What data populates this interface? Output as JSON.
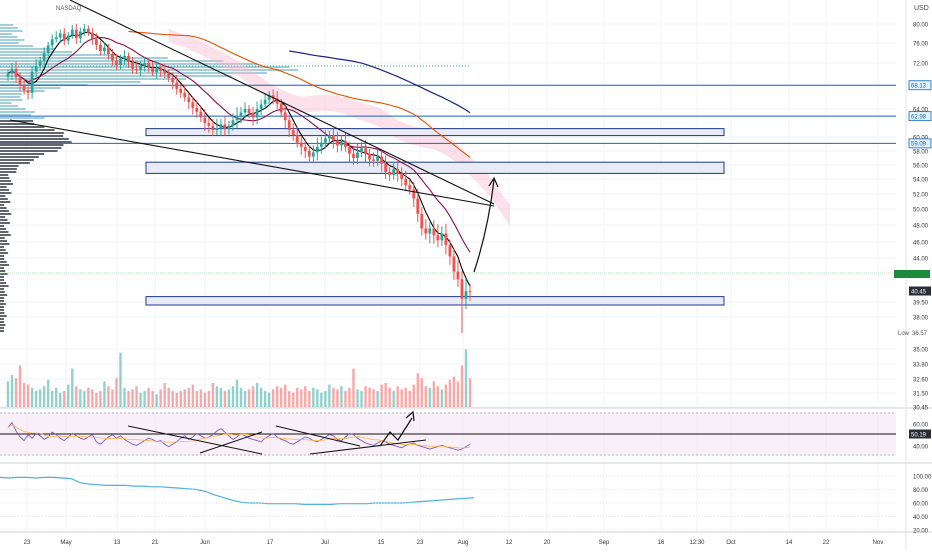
{
  "header": {
    "symbol": "NASDAQ",
    "currency": "USD"
  },
  "price_badges": {
    "resistance_high": "68.13",
    "resistance_mid": "62.98",
    "resistance_low": "59.09",
    "last": "40.45",
    "low_label": "Low",
    "low_value": "36.57"
  },
  "rsi_badge": "50.19",
  "colors": {
    "up": "#26a69a",
    "down": "#ef5350",
    "zone": "#1e3a8a",
    "zone_fill": "#e8eaf6",
    "ma_fast": "#000000",
    "ma_mid": "#880e4f",
    "ma_slow": "#e65100",
    "ma_long": "#1a237e",
    "cloud": "#f8bbd0",
    "rsi": "#7e57c2",
    "breadth": "#4fb0e0",
    "badge": "#1565c0"
  },
  "chart_data": [
    {
      "type": "candlestick",
      "title": "",
      "y_ticks": [
        "80.00",
        "76.00",
        "72.00",
        "68.00",
        "64.00",
        "60.00",
        "58.00",
        "56.00",
        "54.00",
        "52.00",
        "50.00",
        "48.00",
        "46.00",
        "44.00",
        "42.00",
        "39.50",
        "38.00",
        "35.00",
        "33.80",
        "32.60",
        "31.50",
        "30.45"
      ],
      "x_ticks": [
        "23",
        "May",
        "13",
        "21",
        "Jun",
        "17",
        "Jul",
        "15",
        "23",
        "Aug",
        "12",
        "20",
        "Sep",
        "16",
        "12:30",
        "Oct",
        "14",
        "22",
        "Nov"
      ],
      "zones": [
        [
          60.2,
          61.2
        ],
        [
          54.8,
          56.4
        ],
        [
          39.2,
          40.0
        ]
      ],
      "horizontal_levels": [
        68.13,
        62.98,
        59.09
      ],
      "close": [
        70.2,
        71.0,
        69.5,
        68.0,
        67.2,
        66.8,
        70.5,
        71.5,
        72.4,
        74.0,
        75.5,
        76.8,
        77.2,
        78.0,
        76.5,
        77.6,
        78.8,
        77.0,
        78.4,
        79.0,
        78.2,
        76.8,
        75.6,
        74.4,
        75.1,
        73.8,
        72.5,
        71.6,
        72.8,
        73.4,
        72.2,
        71.0,
        70.8,
        71.5,
        72.0,
        71.2,
        70.4,
        71.0,
        70.6,
        70.2,
        69.4,
        68.6,
        67.5,
        66.8,
        66.0,
        65.2,
        64.2,
        63.6,
        62.8,
        62.0,
        61.6,
        61.0,
        61.3,
        61.8,
        61.2,
        61.6,
        62.4,
        63.0,
        63.5,
        64.0,
        63.4,
        62.8,
        64.0,
        64.8,
        65.6,
        66.4,
        65.8,
        64.9,
        63.5,
        62.4,
        61.0,
        60.3,
        59.2,
        58.6,
        58.0,
        57.2,
        57.8,
        58.6,
        59.2,
        59.8,
        60.2,
        59.5,
        58.8,
        59.4,
        58.6,
        57.6,
        57.0,
        57.8,
        58.4,
        57.6,
        56.8,
        56.6,
        57.2,
        56.2,
        55.0,
        54.6,
        55.4,
        54.8,
        54.0,
        53.2,
        52.6,
        51.4,
        49.4,
        47.6,
        47.0,
        47.6,
        46.8,
        46.2,
        47.0,
        45.6,
        44.2,
        42.4,
        41.6,
        39.8,
        40.5,
        40.45
      ],
      "volume": [
        1.6,
        2.0,
        1.8,
        2.6,
        1.5,
        1.4,
        1.2,
        1.0,
        1.1,
        1.3,
        1.7,
        1.0,
        1.2,
        0.9,
        1.0,
        1.4,
        2.4,
        1.3,
        1.1,
        1.0,
        1.2,
        1.1,
        0.9,
        1.0,
        1.6,
        1.3,
        1.1,
        1.8,
        3.4,
        1.2,
        1.0,
        1.1,
        1.3,
        0.9,
        1.0,
        1.2,
        1.0,
        0.8,
        1.1,
        1.5,
        1.2,
        1.0,
        0.9,
        1.0,
        1.1,
        1.2,
        1.4,
        1.0,
        1.1,
        0.9,
        1.0,
        1.5,
        1.3,
        1.2,
        1.0,
        1.1,
        1.3,
        1.7,
        1.2,
        1.0,
        1.1,
        1.3,
        1.5,
        1.2,
        1.0,
        0.9,
        1.1,
        1.3,
        1.2,
        1.4,
        1.0,
        0.9,
        1.2,
        1.1,
        1.3,
        1.0,
        1.2,
        1.1,
        0.9,
        1.0,
        1.4,
        1.2,
        1.1,
        1.3,
        1.0,
        1.2,
        2.4,
        1.1,
        1.0,
        1.3,
        1.2,
        1.1,
        1.0,
        1.4,
        1.5,
        1.2,
        1.0,
        1.3,
        1.1,
        1.2,
        1.0,
        1.4,
        2.1,
        1.8,
        1.3,
        1.2,
        1.6,
        1.3,
        1.1,
        1.4,
        1.7,
        1.9,
        1.6,
        2.6,
        3.6,
        1.8
      ]
    },
    {
      "type": "line",
      "name": "",
      "y_ticks": [
        "60.00",
        "50.19",
        "40.00"
      ],
      "values": [
        58,
        62,
        55,
        50,
        47,
        52,
        49,
        53,
        51,
        48,
        50,
        54,
        52,
        49,
        47,
        50,
        53,
        51,
        49,
        48,
        50,
        52,
        46,
        44,
        47,
        50,
        52,
        49,
        51,
        48,
        46,
        44,
        43,
        45,
        47,
        49,
        48,
        46,
        47,
        44,
        42,
        44,
        46,
        49,
        51,
        48,
        50,
        53,
        51,
        49,
        50,
        52,
        55,
        57,
        54,
        51,
        48,
        50,
        53,
        51,
        49,
        48,
        47,
        46,
        49,
        51,
        53,
        50,
        48,
        47,
        45,
        44,
        46,
        48,
        50,
        49,
        47,
        46,
        48,
        50,
        52,
        51,
        48,
        47,
        50,
        53,
        52,
        49,
        47,
        45,
        44,
        43,
        45,
        47,
        46,
        44,
        43,
        42,
        41,
        43,
        44,
        45,
        43,
        42,
        41,
        40,
        41,
        42,
        43,
        42,
        41,
        40,
        39,
        40,
        42,
        44
      ]
    },
    {
      "type": "line",
      "name": "",
      "y_ticks": [
        "100.00",
        "80.00",
        "60.00",
        "40.00",
        "20.00"
      ],
      "values": [
        98,
        97,
        98,
        98,
        97,
        98,
        98,
        97,
        96,
        90,
        88,
        87,
        86,
        86,
        86,
        85,
        85,
        84,
        84,
        83,
        82,
        81,
        80,
        77,
        72,
        68,
        64,
        61,
        60,
        60,
        59,
        59,
        59,
        59,
        58,
        58,
        58,
        58,
        59,
        59,
        59,
        59,
        60,
        60,
        60,
        60,
        61,
        62,
        63,
        64,
        65,
        66,
        67,
        68
      ]
    }
  ]
}
